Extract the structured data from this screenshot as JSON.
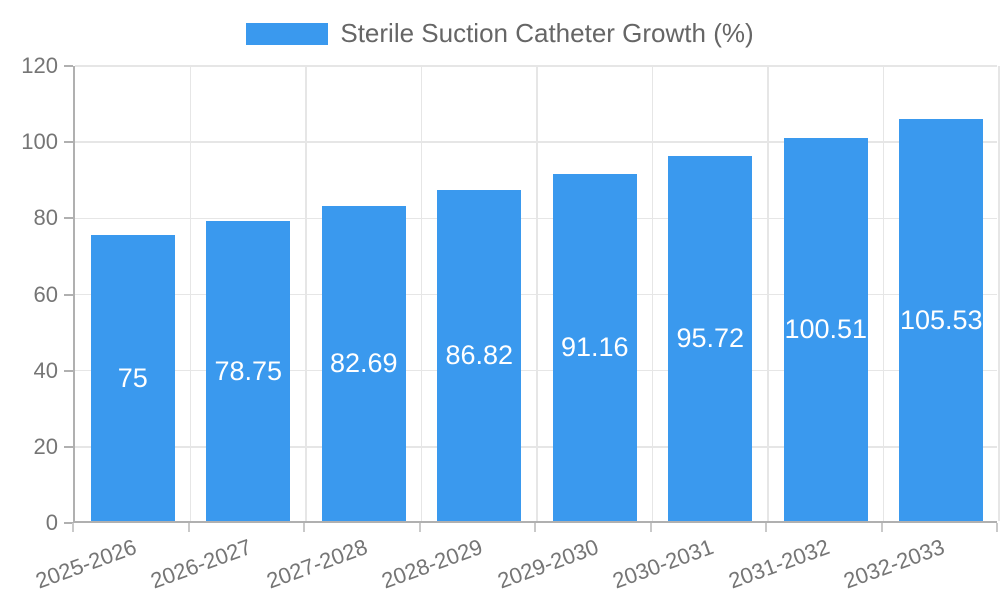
{
  "chart_data": {
    "type": "bar",
    "title": "Sterile Suction Catheter Growth (%)",
    "categories": [
      "2025-2026",
      "2026-2027",
      "2027-2028",
      "2028-2029",
      "2029-2030",
      "2030-2031",
      "2031-2032",
      "2032-2033"
    ],
    "values": [
      75,
      78.75,
      82.69,
      86.82,
      91.16,
      95.72,
      100.51,
      105.53
    ],
    "value_labels": [
      "75",
      "78.75",
      "82.69",
      "86.82",
      "91.16",
      "95.72",
      "100.51",
      "105.53"
    ],
    "xlabel": "",
    "ylabel": "",
    "ylim": [
      0,
      120
    ],
    "yticks": [
      0,
      20,
      40,
      60,
      80,
      100,
      120
    ],
    "grid": true,
    "legend_position": "top",
    "colors": {
      "bar": "#3a99ee",
      "grid": "#e6e6e6",
      "axis": "#b0b0b0",
      "tick_label": "#757575",
      "legend_text": "#666666",
      "bar_label": "#ffffff"
    }
  }
}
